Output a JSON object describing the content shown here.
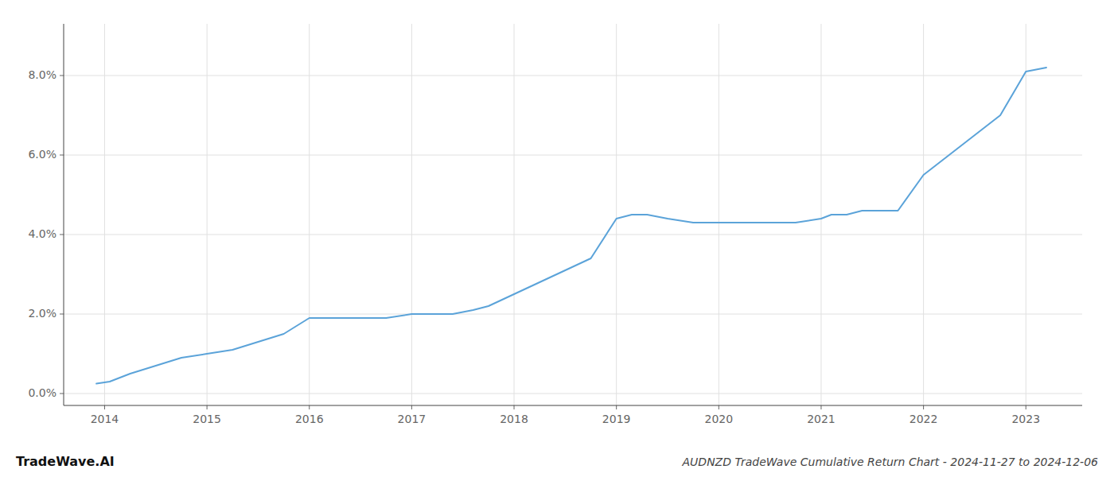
{
  "chart_data": {
    "type": "line",
    "title": "AUDNZD TradeWave Cumulative Return Chart - 2024-11-27 to 2024-12-06",
    "annotations": [
      "TradeWave.AI"
    ],
    "x": [
      2013.92,
      2014.05,
      2014.25,
      2014.5,
      2014.75,
      2015.0,
      2015.25,
      2015.5,
      2015.75,
      2016.0,
      2016.1,
      2016.25,
      2016.5,
      2016.75,
      2017.0,
      2017.25,
      2017.4,
      2017.6,
      2017.75,
      2018.0,
      2018.25,
      2018.5,
      2018.75,
      2019.0,
      2019.15,
      2019.3,
      2019.5,
      2019.75,
      2020.0,
      2020.25,
      2020.5,
      2020.75,
      2021.0,
      2021.1,
      2021.25,
      2021.4,
      2021.6,
      2021.75,
      2022.0,
      2022.25,
      2022.5,
      2022.75,
      2023.0,
      2023.2
    ],
    "values": [
      0.0025,
      0.003,
      0.005,
      0.007,
      0.009,
      0.01,
      0.011,
      0.013,
      0.015,
      0.019,
      0.019,
      0.019,
      0.019,
      0.019,
      0.02,
      0.02,
      0.02,
      0.021,
      0.022,
      0.025,
      0.028,
      0.031,
      0.034,
      0.044,
      0.045,
      0.045,
      0.044,
      0.043,
      0.043,
      0.043,
      0.043,
      0.043,
      0.044,
      0.045,
      0.045,
      0.046,
      0.046,
      0.046,
      0.055,
      0.06,
      0.065,
      0.07,
      0.081,
      0.082
    ],
    "color": "#5ba3d9",
    "xlim": [
      2013.6,
      2023.55
    ],
    "xticks": [
      2014,
      2015,
      2016,
      2017,
      2018,
      2019,
      2020,
      2021,
      2022,
      2023
    ],
    "ylim": [
      -0.003,
      0.093
    ],
    "yticks": [
      {
        "value": 0.0,
        "label": "0.0%"
      },
      {
        "value": 0.02,
        "label": "2.0%"
      },
      {
        "value": 0.04,
        "label": "4.0%"
      },
      {
        "value": 0.06,
        "label": "6.0%"
      },
      {
        "value": 0.08,
        "label": "8.0%"
      }
    ],
    "grid": true
  }
}
